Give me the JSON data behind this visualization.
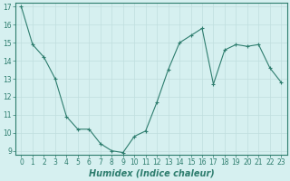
{
  "x": [
    0,
    1,
    2,
    3,
    4,
    5,
    6,
    7,
    8,
    9,
    10,
    11,
    12,
    13,
    14,
    15,
    16,
    17,
    18,
    19,
    20,
    21,
    22,
    23
  ],
  "y": [
    17.0,
    14.9,
    14.2,
    13.0,
    10.9,
    10.2,
    10.2,
    9.4,
    9.0,
    8.9,
    9.8,
    10.1,
    11.7,
    13.5,
    15.0,
    15.4,
    15.8,
    12.7,
    14.6,
    14.9,
    14.8,
    14.9,
    13.6,
    12.8
  ],
  "ylim": [
    9,
    17
  ],
  "yticks": [
    9,
    10,
    11,
    12,
    13,
    14,
    15,
    16,
    17
  ],
  "xticks": [
    0,
    1,
    2,
    3,
    4,
    5,
    6,
    7,
    8,
    9,
    10,
    11,
    12,
    13,
    14,
    15,
    16,
    17,
    18,
    19,
    20,
    21,
    22,
    23
  ],
  "xlabel": "Humidex (Indice chaleur)",
  "line_color": "#2e7d6e",
  "marker": "+",
  "marker_size": 3,
  "bg_color": "#d6f0f0",
  "grid_color": "#c0dede",
  "tick_label_color": "#2e7d6e",
  "xlabel_color": "#2e7d6e",
  "tick_fontsize": 5.5,
  "xlabel_fontsize": 7,
  "xlim_left": -0.5,
  "xlim_right": 23.5,
  "ylim_bottom": 8.8,
  "ylim_top": 17.2
}
